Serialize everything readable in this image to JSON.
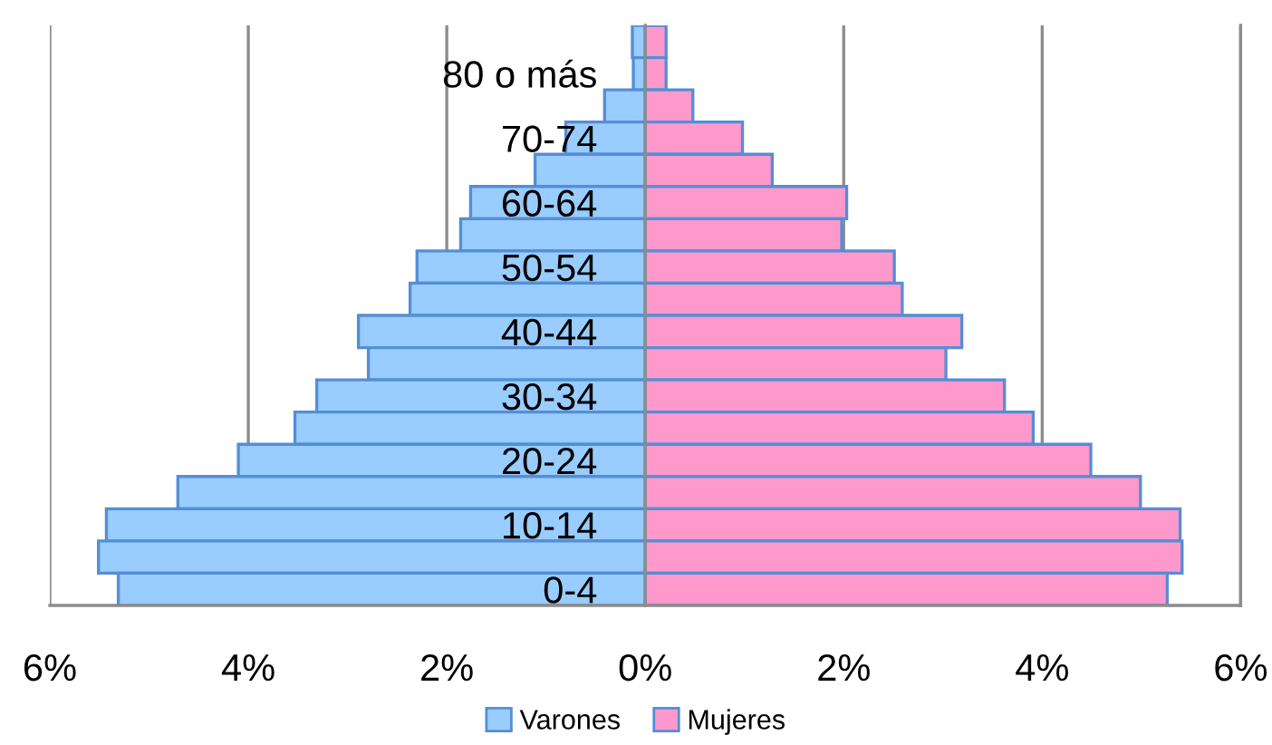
{
  "chart_data": {
    "type": "bar",
    "orientation": "horizontal",
    "stacked": true,
    "categories": [
      null,
      "80 o más",
      null,
      "70-74",
      null,
      "60-64",
      null,
      "50-54",
      null,
      "40-44",
      null,
      "30-34",
      null,
      "20-24",
      null,
      "10-14",
      null,
      "0-4"
    ],
    "series": [
      {
        "name": "Varones",
        "color": "#99ccff",
        "values": [
          -0.13,
          -0.12,
          -0.41,
          -0.8,
          -1.11,
          -1.76,
          -1.86,
          -2.3,
          -2.37,
          -2.89,
          -2.79,
          -3.31,
          -3.53,
          -4.1,
          -4.71,
          -5.43,
          -5.51,
          -5.31
        ]
      },
      {
        "name": "Mujeres",
        "color": "#ff99cc",
        "values": [
          0.21,
          0.21,
          0.48,
          0.98,
          1.28,
          2.03,
          1.98,
          2.51,
          2.59,
          3.19,
          3.03,
          3.62,
          3.91,
          4.49,
          4.99,
          5.39,
          5.41,
          5.26
        ]
      }
    ],
    "xlim": [
      -6,
      6
    ],
    "xticks": [
      {
        "value": -6,
        "label": "6%"
      },
      {
        "value": -4,
        "label": "4%"
      },
      {
        "value": -2,
        "label": "2%"
      },
      {
        "value": 0,
        "label": "0%"
      },
      {
        "value": 2,
        "label": "2%"
      },
      {
        "value": 4,
        "label": "4%"
      },
      {
        "value": 6,
        "label": "6%"
      }
    ],
    "grid": "x",
    "legend": "bottom"
  }
}
